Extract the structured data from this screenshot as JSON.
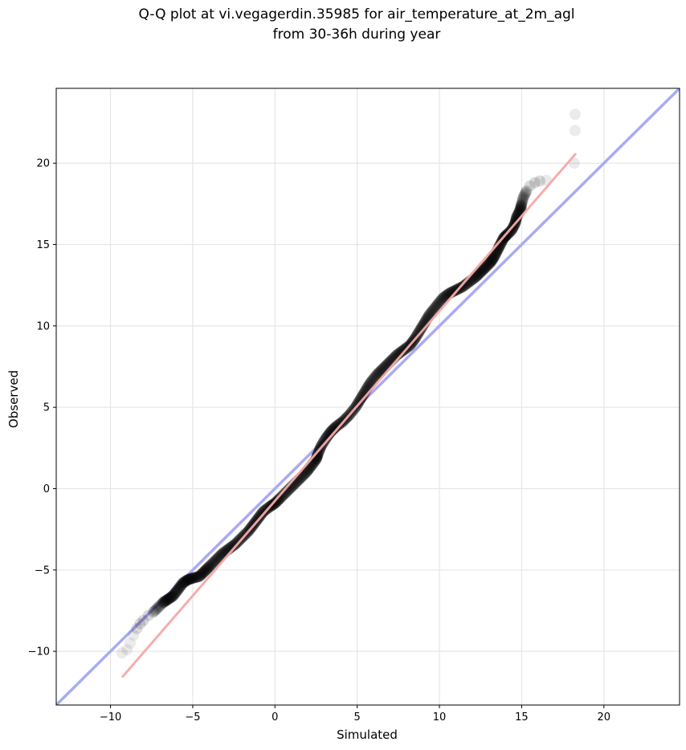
{
  "chart_data": {
    "type": "scatter",
    "title": "Q-Q plot at vi.vegagerdin.35985 for air_temperature_at_2m_agl",
    "subtitle": "from 30-36h during year",
    "xlabel": "Simulated",
    "ylabel": "Observed",
    "xlim": [
      -13.3,
      24.6
    ],
    "ylim": [
      -13.3,
      24.6
    ],
    "xticks": [
      -10,
      -5,
      0,
      5,
      10,
      15,
      20
    ],
    "yticks": [
      -10,
      -5,
      0,
      5,
      10,
      15,
      20
    ],
    "xtick_labels": [
      "−10",
      "−5",
      "0",
      "5",
      "10",
      "15",
      "20"
    ],
    "ytick_labels": [
      "−10",
      "−5",
      "0",
      "5",
      "10",
      "15",
      "20"
    ],
    "grid": true,
    "identity_line": {
      "from": [
        -13.3,
        -13.3
      ],
      "to": [
        24.6,
        24.6
      ],
      "color": "#aaaaf5"
    },
    "fit_line": {
      "from": [
        -9.3,
        -11.6
      ],
      "to": [
        18.3,
        20.6
      ],
      "color": "#f5a8a8"
    },
    "marker_color": "#000000",
    "quantiles": [
      [
        -9.3,
        -10.1
      ],
      [
        -9.0,
        -9.9
      ],
      [
        -8.8,
        -9.5
      ],
      [
        -8.6,
        -9.0
      ],
      [
        -8.4,
        -8.6
      ],
      [
        -8.2,
        -8.3
      ],
      [
        -8.0,
        -8.1
      ],
      [
        -7.7,
        -7.8
      ],
      [
        -7.4,
        -7.6
      ],
      [
        -7.1,
        -7.3
      ],
      [
        -6.8,
        -7.0
      ],
      [
        -6.5,
        -6.8
      ],
      [
        -6.2,
        -6.6
      ],
      [
        -5.9,
        -6.2
      ],
      [
        -5.6,
        -5.8
      ],
      [
        -5.3,
        -5.6
      ],
      [
        -5.0,
        -5.5
      ],
      [
        -4.6,
        -5.4
      ],
      [
        -4.3,
        -5.1
      ],
      [
        -4.0,
        -4.8
      ],
      [
        -3.6,
        -4.4
      ],
      [
        -3.2,
        -4.0
      ],
      [
        -2.8,
        -3.7
      ],
      [
        -2.4,
        -3.4
      ],
      [
        -2.0,
        -3.0
      ],
      [
        -1.6,
        -2.6
      ],
      [
        -1.3,
        -2.2
      ],
      [
        -1.0,
        -1.8
      ],
      [
        -0.7,
        -1.4
      ],
      [
        -0.3,
        -1.1
      ],
      [
        0.0,
        -0.9
      ],
      [
        0.3,
        -0.6
      ],
      [
        0.7,
        -0.2
      ],
      [
        1.1,
        0.2
      ],
      [
        1.5,
        0.6
      ],
      [
        1.9,
        1.0
      ],
      [
        2.2,
        1.4
      ],
      [
        2.5,
        1.8
      ],
      [
        2.6,
        2.1
      ],
      [
        2.8,
        2.6
      ],
      [
        3.1,
        3.1
      ],
      [
        3.4,
        3.5
      ],
      [
        3.7,
        3.8
      ],
      [
        4.1,
        4.1
      ],
      [
        4.5,
        4.5
      ],
      [
        4.9,
        5.0
      ],
      [
        5.2,
        5.5
      ],
      [
        5.5,
        6.0
      ],
      [
        5.8,
        6.5
      ],
      [
        6.2,
        7.0
      ],
      [
        6.6,
        7.4
      ],
      [
        7.0,
        7.8
      ],
      [
        7.4,
        8.2
      ],
      [
        7.8,
        8.5
      ],
      [
        8.2,
        8.8
      ],
      [
        8.5,
        9.2
      ],
      [
        8.8,
        9.7
      ],
      [
        9.1,
        10.2
      ],
      [
        9.4,
        10.7
      ],
      [
        9.8,
        11.2
      ],
      [
        10.2,
        11.7
      ],
      [
        10.6,
        12.0
      ],
      [
        11.0,
        12.2
      ],
      [
        11.4,
        12.4
      ],
      [
        11.8,
        12.7
      ],
      [
        12.2,
        13.0
      ],
      [
        12.5,
        13.3
      ],
      [
        12.8,
        13.6
      ],
      [
        13.1,
        13.9
      ],
      [
        13.3,
        14.2
      ],
      [
        13.5,
        14.6
      ],
      [
        13.7,
        15.0
      ],
      [
        13.9,
        15.4
      ],
      [
        14.1,
        15.6
      ],
      [
        14.4,
        15.9
      ],
      [
        14.6,
        16.3
      ],
      [
        14.7,
        16.7
      ],
      [
        14.9,
        17.1
      ],
      [
        15.0,
        17.5
      ],
      [
        15.1,
        17.9
      ],
      [
        15.3,
        18.3
      ],
      [
        15.5,
        18.6
      ],
      [
        15.8,
        18.8
      ],
      [
        16.1,
        18.9
      ],
      [
        16.5,
        18.95
      ],
      [
        18.2,
        20.0
      ],
      [
        18.25,
        22.0
      ],
      [
        18.25,
        23.0
      ]
    ]
  }
}
